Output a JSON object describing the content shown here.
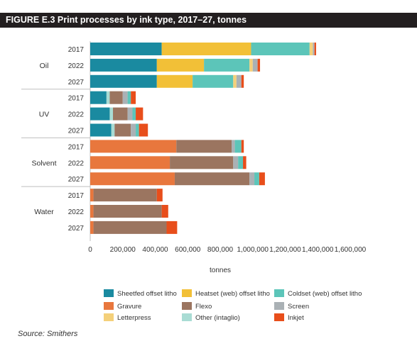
{
  "figure_title": "FIGURE E.3 Print processes by ink type, 2017–27, tonnes",
  "source": "Source: Smithers",
  "chart_data": {
    "type": "bar",
    "orientation": "horizontal",
    "stacked": true,
    "title": "FIGURE E.3 Print processes by ink type, 2017–27, tonnes",
    "xlabel": "tonnes",
    "ylabel": "",
    "xlim": [
      0,
      1600000
    ],
    "x_ticks": [
      "0",
      "200,000",
      "400,000",
      "600,000",
      "800,000",
      "1,000,000",
      "1,200,000",
      "1,400,000",
      "1,600,000"
    ],
    "legend_position": "bottom",
    "grid": false,
    "groups": [
      {
        "name": "Oil",
        "years": [
          "2017",
          "2022",
          "2027"
        ]
      },
      {
        "name": "UV",
        "years": [
          "2017",
          "2022",
          "2027"
        ]
      },
      {
        "name": "Solvent",
        "years": [
          "2017",
          "2022",
          "2027"
        ]
      },
      {
        "name": "Water",
        "years": [
          "2017",
          "2022",
          "2027"
        ]
      }
    ],
    "series": [
      {
        "name": "Sheetfed offset litho",
        "color": "#1a8aa0",
        "values": [
          440000,
          410000,
          410000,
          100000,
          120000,
          130000,
          0,
          0,
          0,
          0,
          0,
          0
        ]
      },
      {
        "name": "Gravure",
        "color": "#e8773d",
        "values": [
          0,
          0,
          0,
          0,
          0,
          0,
          530000,
          490000,
          520000,
          20000,
          20000,
          20000
        ]
      },
      {
        "name": "Letterpress",
        "color": "#f4d07a",
        "values": [
          20000,
          20000,
          20000,
          0,
          0,
          0,
          0,
          0,
          0,
          0,
          0,
          0
        ]
      },
      {
        "name": "Heatset (web) offset litho",
        "color": "#f2c037",
        "values": [
          550000,
          290000,
          220000,
          0,
          0,
          0,
          0,
          0,
          0,
          0,
          0,
          0
        ]
      },
      {
        "name": "Flexo",
        "color": "#9b7560",
        "values": [
          0,
          0,
          0,
          80000,
          90000,
          100000,
          340000,
          390000,
          460000,
          390000,
          420000,
          450000
        ]
      },
      {
        "name": "Other (intaglio)",
        "color": "#a9dcd4",
        "values": [
          0,
          0,
          0,
          20000,
          20000,
          20000,
          0,
          0,
          0,
          0,
          0,
          0
        ]
      },
      {
        "name": "Coldset (web) offset litho",
        "color": "#5cc5b9",
        "values": [
          360000,
          280000,
          250000,
          20000,
          20000,
          20000,
          40000,
          30000,
          30000,
          0,
          0,
          0
        ]
      },
      {
        "name": "Screen",
        "color": "#aab1b5",
        "values": [
          10000,
          30000,
          30000,
          30000,
          30000,
          30000,
          20000,
          30000,
          30000,
          0,
          0,
          0
        ]
      },
      {
        "name": "Inkjet",
        "color": "#e84e1b",
        "values": [
          10000,
          15000,
          15000,
          30000,
          45000,
          55000,
          15000,
          20000,
          35000,
          35000,
          40000,
          65000
        ]
      }
    ],
    "legend": [
      {
        "name": "Sheetfed offset litho",
        "color": "#1a8aa0"
      },
      {
        "name": "Heatset (web) offset litho",
        "color": "#f2c037"
      },
      {
        "name": "Coldset (web) offset litho",
        "color": "#5cc5b9"
      },
      {
        "name": "Gravure",
        "color": "#e8773d"
      },
      {
        "name": "Flexo",
        "color": "#9b7560"
      },
      {
        "name": "Screen",
        "color": "#aab1b5"
      },
      {
        "name": "Letterpress",
        "color": "#f4d07a"
      },
      {
        "name": "Other (intaglio)",
        "color": "#a9dcd4"
      },
      {
        "name": "Inkjet",
        "color": "#e84e1b"
      }
    ],
    "stack_order": [
      [
        0,
        3,
        6,
        2,
        7,
        8
      ],
      [
        0,
        5,
        4,
        7,
        6,
        8
      ],
      [
        1,
        4,
        7,
        6,
        8
      ],
      [
        1,
        4,
        8
      ]
    ]
  }
}
